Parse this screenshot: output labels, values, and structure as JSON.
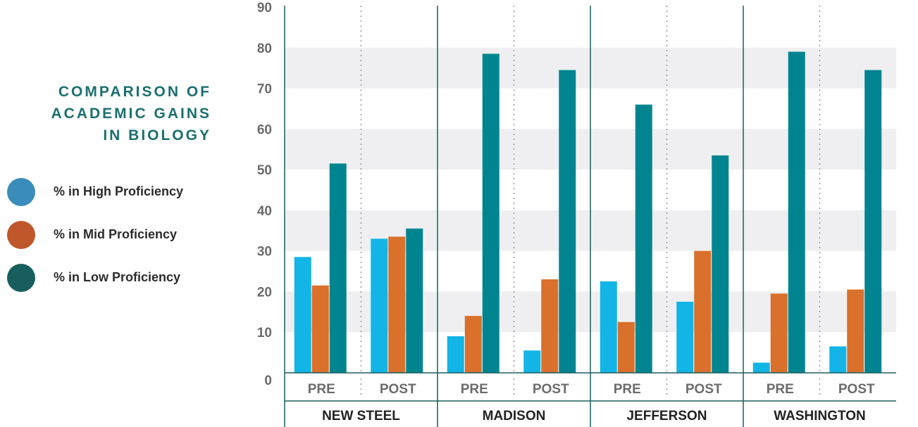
{
  "title_lines": [
    "COMPARISON OF",
    "ACADEMIC GAINS",
    "IN BIOLOGY"
  ],
  "legend": [
    {
      "label": "% in High Proficiency",
      "color": "#3a8dba",
      "icon": "circle"
    },
    {
      "label": "% in Mid Proficiency",
      "color": "#c0572a",
      "icon": "circle"
    },
    {
      "label": "% in Low Proficiency",
      "color": "#185e5e",
      "icon": "circle"
    }
  ],
  "chart_data": {
    "type": "bar",
    "title": "COMPARISON OF ACADEMIC GAINS IN BIOLOGY",
    "xlabel": "",
    "ylabel": "",
    "ylim": [
      0,
      90
    ],
    "yticks": [
      0,
      10,
      20,
      30,
      40,
      50,
      60,
      70,
      80,
      90
    ],
    "grid": "alternating horizontal bands",
    "legend_position": "left",
    "groups": [
      "NEW STEEL",
      "MADISON",
      "JEFFERSON",
      "WASHINGTON"
    ],
    "subgroups": [
      "PRE",
      "POST"
    ],
    "categories": [
      "NEW STEEL PRE",
      "NEW STEEL POST",
      "MADISON PRE",
      "MADISON POST",
      "JEFFERSON PRE",
      "JEFFERSON POST",
      "WASHINGTON PRE",
      "WASHINGTON POST"
    ],
    "series": [
      {
        "name": "% in High Proficiency",
        "color": "#12b5e5",
        "values": [
          28.5,
          33,
          9,
          5.5,
          22.5,
          17.5,
          2.5,
          6.5
        ]
      },
      {
        "name": "% in Mid Proficiency",
        "color": "#d9702b",
        "values": [
          21.5,
          33.5,
          14,
          23,
          12.5,
          30,
          19.5,
          20.5
        ]
      },
      {
        "name": "% in Low Proficiency",
        "color": "#008590",
        "values": [
          51.5,
          35.5,
          78.5,
          74.5,
          66,
          53.5,
          79,
          74.5
        ]
      }
    ]
  }
}
